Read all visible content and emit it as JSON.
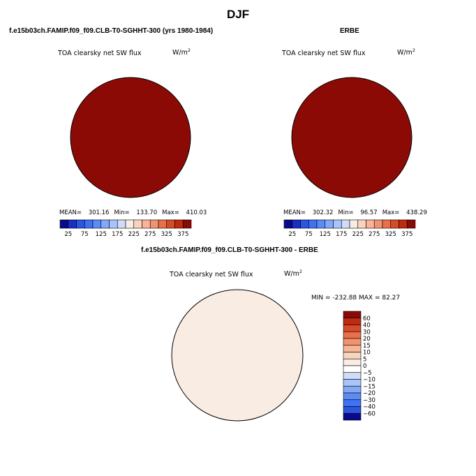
{
  "figure": {
    "title": "DJF",
    "variable": "TOA clearsky net SW flux",
    "units_base": "W/m",
    "units_exp": "2"
  },
  "panels": {
    "model": {
      "title": "f.e15b03ch.FAMIP.f09_f09.CLB-T0-SGHHT-300 (yrs 1980-1984)",
      "mean_label": "MEAN=",
      "mean_value": "301.16",
      "min_label": "Min=",
      "min_value": "133.70",
      "max_label": "Max=",
      "max_value": "410.03"
    },
    "obs": {
      "title": "ERBE",
      "mean_label": "MEAN=",
      "mean_value": "302.32",
      "min_label": "Min=",
      "min_value": "96.57",
      "max_label": "Max=",
      "max_value": "438.29"
    },
    "diff": {
      "title": "f.e15b03ch.FAMIP.f09_f09.CLB-T0-SGHHT-300 - ERBE",
      "minmax_text": "MIN = -232.88  MAX =  82.27"
    }
  },
  "chart_data": [
    {
      "type": "heatmap",
      "projection": "south-polar-stereographic",
      "panel": "model",
      "colorbar": {
        "orientation": "horizontal",
        "levels": [
          25,
          50,
          75,
          100,
          125,
          150,
          175,
          200,
          225,
          250,
          275,
          300,
          325,
          350,
          375
        ],
        "tick_labels": [
          "25",
          "75",
          "125",
          "175",
          "225",
          "275",
          "325",
          "375"
        ],
        "colors": [
          "#0a0a8c",
          "#1a2fc2",
          "#2c55e0",
          "#3d72f0",
          "#5b8cf5",
          "#82a9f7",
          "#a9c4f8",
          "#cfdcfa",
          "#f9ece2",
          "#fad3bd",
          "#f7b595",
          "#f29370",
          "#e8704a",
          "#d94a28",
          "#bf2a12",
          "#8c0a05"
        ]
      },
      "stats": {
        "mean": 301.16,
        "min": 133.7,
        "max": 410.03
      }
    },
    {
      "type": "heatmap",
      "projection": "south-polar-stereographic",
      "panel": "obs",
      "colorbar": {
        "orientation": "horizontal",
        "levels": [
          25,
          50,
          75,
          100,
          125,
          150,
          175,
          200,
          225,
          250,
          275,
          300,
          325,
          350,
          375
        ],
        "tick_labels": [
          "25",
          "75",
          "125",
          "175",
          "225",
          "275",
          "325",
          "375"
        ],
        "colors": [
          "#0a0a8c",
          "#1a2fc2",
          "#2c55e0",
          "#3d72f0",
          "#5b8cf5",
          "#82a9f7",
          "#a9c4f8",
          "#cfdcfa",
          "#f9ece2",
          "#fad3bd",
          "#f7b595",
          "#f29370",
          "#e8704a",
          "#d94a28",
          "#bf2a12",
          "#8c0a05"
        ]
      },
      "stats": {
        "mean": 302.32,
        "min": 96.57,
        "max": 438.29
      }
    },
    {
      "type": "heatmap",
      "projection": "south-polar-stereographic",
      "panel": "diff",
      "colorbar": {
        "orientation": "vertical",
        "levels": [
          -60,
          -40,
          -30,
          -20,
          -15,
          -10,
          -5,
          0,
          5,
          10,
          15,
          20,
          30,
          40,
          60
        ],
        "tick_labels": [
          "60",
          "40",
          "30",
          "20",
          "15",
          "10",
          "5",
          "0",
          "−5",
          "−10",
          "−15",
          "−20",
          "−30",
          "−40",
          "−60"
        ],
        "colors": [
          "#8c0a05",
          "#bf2a12",
          "#d94a28",
          "#e8704a",
          "#f29370",
          "#f7b595",
          "#fad3bd",
          "#f9ece2",
          "#ffffff",
          "#cfdcfa",
          "#a9c4f8",
          "#82a9f7",
          "#5b8cf5",
          "#3d72f0",
          "#2c55e0",
          "#0a0a8c"
        ]
      },
      "stats": {
        "min": -232.88,
        "max": 82.27
      }
    }
  ]
}
